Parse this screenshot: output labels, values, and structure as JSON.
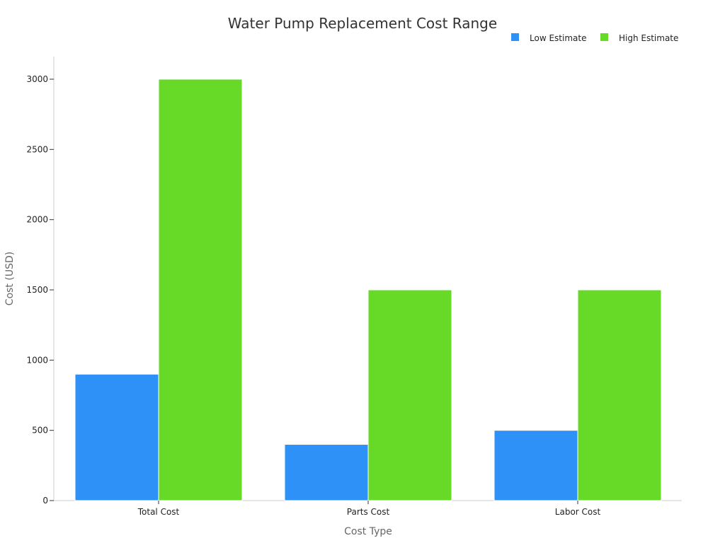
{
  "chart_data": {
    "type": "bar",
    "title": "Water Pump Replacement Cost Range",
    "xlabel": "Cost Type",
    "ylabel": "Cost (USD)",
    "categories": [
      "Total Cost",
      "Parts Cost",
      "Labor Cost"
    ],
    "series": [
      {
        "name": "Low Estimate",
        "values": [
          900,
          400,
          500
        ],
        "color": "#2e91f8"
      },
      {
        "name": "High Estimate",
        "values": [
          3000,
          1500,
          1500
        ],
        "color": "#66da26"
      }
    ],
    "ylim": [
      0,
      3000
    ],
    "yticks": [
      0,
      500,
      1000,
      1500,
      2000,
      2500,
      3000
    ],
    "grid": false,
    "legend_position": "top-right"
  }
}
